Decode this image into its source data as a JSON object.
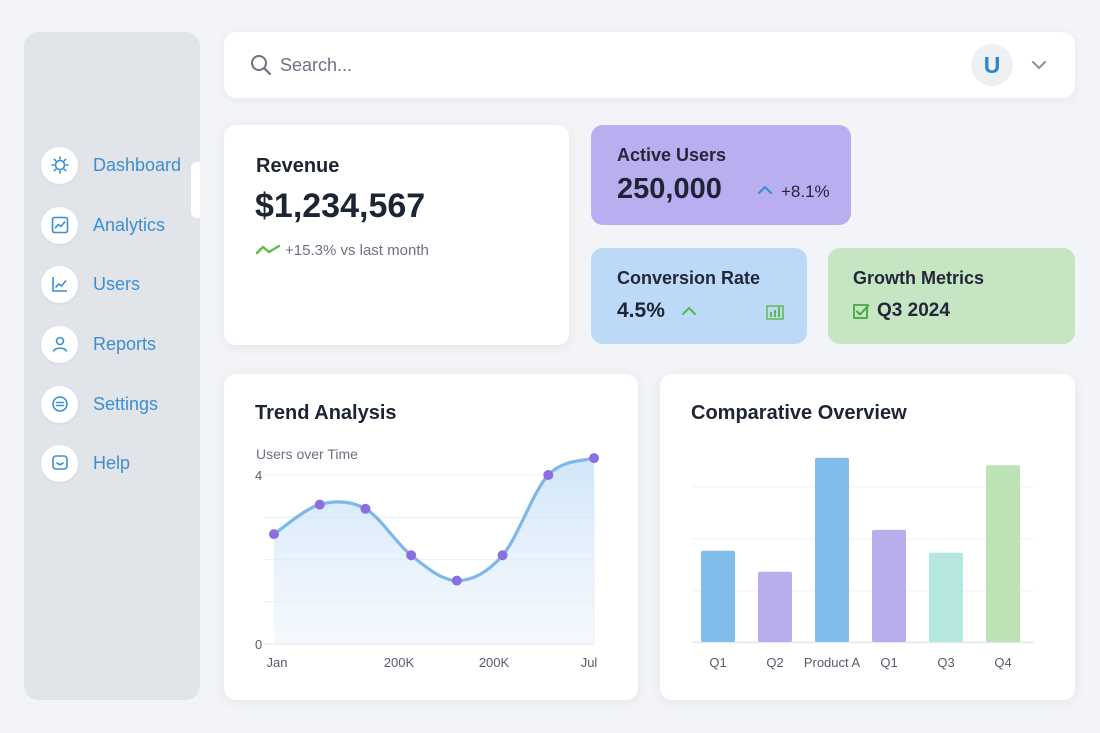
{
  "sidebar": {
    "items": [
      {
        "label": "Dashboard",
        "icon": "sun-gear-icon"
      },
      {
        "label": "Analytics",
        "icon": "chart-line-icon"
      },
      {
        "label": "Users",
        "icon": "trend-up-icon"
      },
      {
        "label": "Reports",
        "icon": "user-icon"
      },
      {
        "label": "Settings",
        "icon": "settings-circle-icon"
      },
      {
        "label": "Help",
        "icon": "help-chat-icon"
      }
    ],
    "active": "Analytics"
  },
  "search": {
    "placeholder": "Search..."
  },
  "user": {
    "avatar_initial": "U"
  },
  "revenue": {
    "title": "Revenue",
    "amount": "$1,234,567",
    "change": "+15.3% vs last month"
  },
  "active_users": {
    "title": "Active Users",
    "value": "250,000",
    "change": "+8.1%"
  },
  "conversion": {
    "title": "Conversion Rate",
    "value": "4.5%"
  },
  "growth": {
    "title": "Growth Metrics",
    "value": "Q3 2024"
  },
  "colors": {
    "accent_blue": "#3b8fd0",
    "active_users_bg": "#b9aeef",
    "conversion_bg": "#bcdaf8",
    "growth_bg": "#c6e5c2",
    "positive_green": "#5dbb4b"
  },
  "chart_data": [
    {
      "type": "area",
      "title": "Trend Analysis",
      "subtitle": "Users over Time",
      "ylim": [
        0,
        4
      ],
      "y_ticks": [
        "0",
        "4"
      ],
      "x_ticks": [
        "Jan",
        "200K",
        "200K",
        "Jul"
      ],
      "values": [
        2.6,
        3.3,
        3.2,
        2.1,
        1.5,
        2.1,
        4.0,
        4.4
      ],
      "grid": true
    },
    {
      "type": "bar",
      "title": "Comparative Overview",
      "categories": [
        "Q1",
        "Q2",
        "Product A",
        "Q1",
        "Q3",
        "Q4"
      ],
      "values": [
        48,
        37,
        97,
        59,
        47,
        93
      ],
      "ylim": [
        0,
        100
      ],
      "colors": [
        "#80bdea",
        "#b9adeb",
        "#80bdea",
        "#b9adeb",
        "#b5e6df",
        "#bde3b5"
      ],
      "grid": true
    }
  ]
}
